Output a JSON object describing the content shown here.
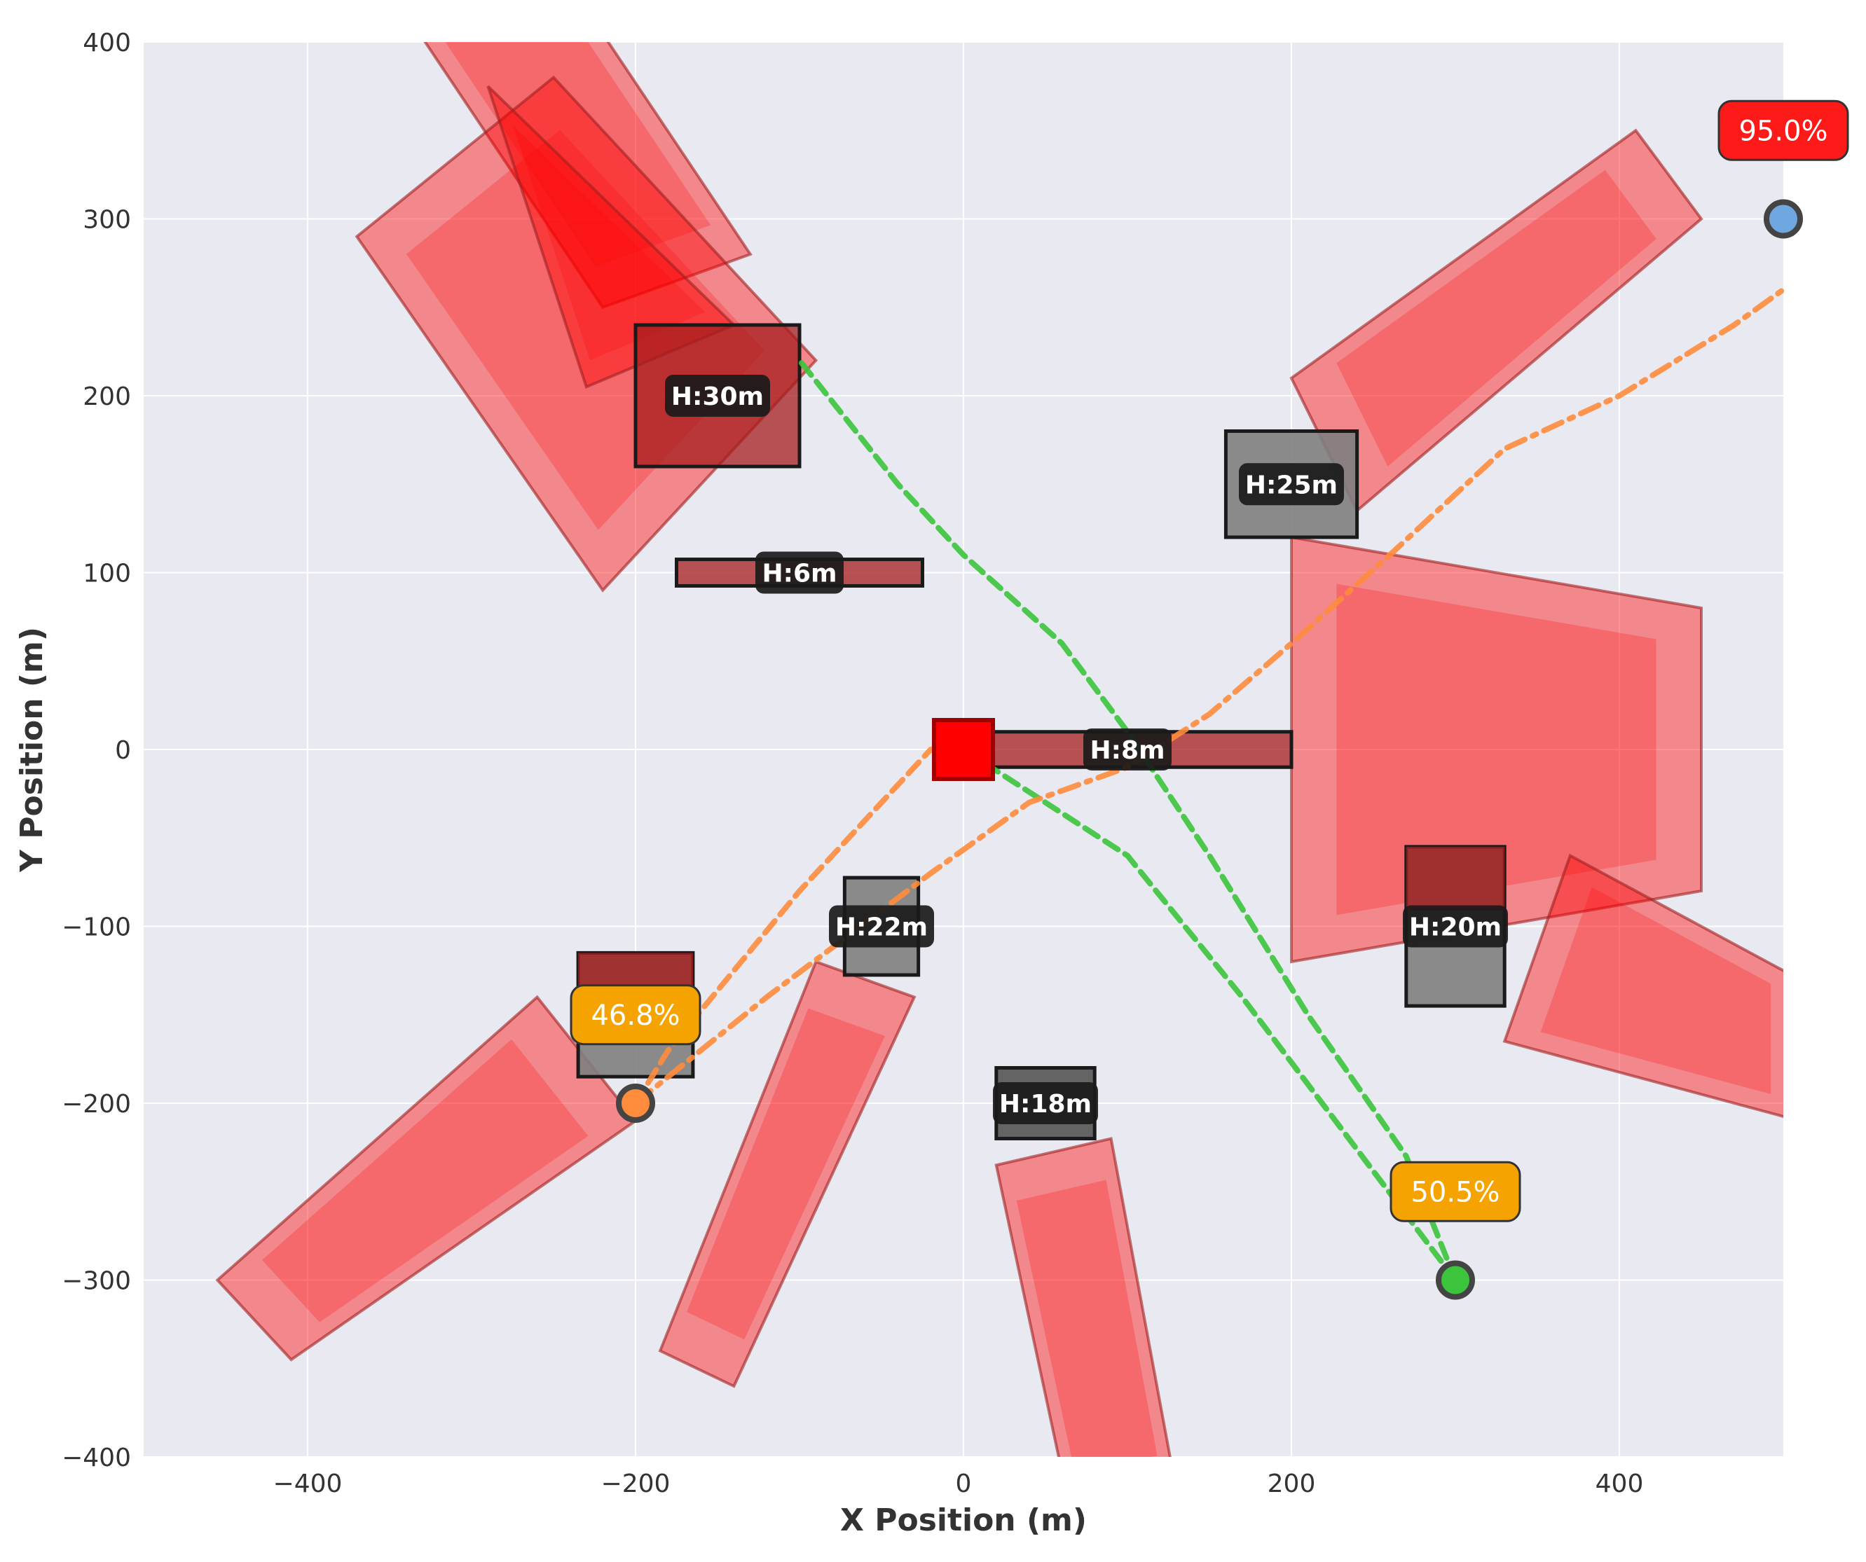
{
  "chart_data": {
    "type": "scatter",
    "title": "",
    "xlabel": "X Position (m)",
    "ylabel": "Y Position (m)",
    "xlim": [
      -500,
      500
    ],
    "ylim": [
      -400,
      400
    ],
    "xticks": [
      -400,
      -200,
      0,
      200,
      400
    ],
    "yticks": [
      -400,
      -300,
      -200,
      -100,
      0,
      100,
      200,
      300,
      400
    ],
    "grid": true,
    "background": "#e9e9f1",
    "colors": {
      "danger_zone": "#ff0000",
      "building": "#808080",
      "building_dark": "#a51c1c",
      "label_box": "#1a1a1a",
      "target": "#ff0000",
      "green_path": "#3cc43c",
      "orange_path": "#ff8c3c",
      "pct_high": "#ff1a1a",
      "pct_mid": "#f5a300",
      "blue_marker": "#6fa8e0"
    },
    "danger_zones": [
      {
        "polygon": [
          [
            -350,
            430
          ],
          [
            -260,
            460
          ],
          [
            -130,
            280
          ],
          [
            -220,
            250
          ]
        ]
      },
      {
        "polygon": [
          [
            -370,
            290
          ],
          [
            -250,
            380
          ],
          [
            -90,
            220
          ],
          [
            -220,
            90
          ]
        ]
      },
      {
        "polygon": [
          [
            -290,
            375
          ],
          [
            -140,
            240
          ],
          [
            -230,
            205
          ]
        ]
      },
      {
        "polygon": [
          [
            200,
            210
          ],
          [
            410,
            350
          ],
          [
            450,
            300
          ],
          [
            240,
            135
          ]
        ]
      },
      {
        "polygon": [
          [
            200,
            120
          ],
          [
            450,
            80
          ],
          [
            450,
            -80
          ],
          [
            200,
            -120
          ]
        ]
      },
      {
        "polygon": [
          [
            370,
            -60
          ],
          [
            510,
            -130
          ],
          [
            510,
            -210
          ],
          [
            330,
            -165
          ]
        ]
      },
      {
        "polygon": [
          [
            -200,
            -210
          ],
          [
            -260,
            -140
          ],
          [
            -455,
            -300
          ],
          [
            -410,
            -345
          ]
        ]
      },
      {
        "polygon": [
          [
            -90,
            -120
          ],
          [
            -30,
            -140
          ],
          [
            -140,
            -360
          ],
          [
            -185,
            -340
          ]
        ]
      },
      {
        "polygon": [
          [
            20,
            -235
          ],
          [
            90,
            -220
          ],
          [
            130,
            -420
          ],
          [
            65,
            -430
          ]
        ]
      }
    ],
    "buildings": [
      {
        "label": "H:30m",
        "center": [
          -150,
          200
        ],
        "size": [
          100,
          80
        ],
        "height": 30,
        "style": "red"
      },
      {
        "label": "H:25m",
        "center": [
          200,
          150
        ],
        "size": [
          80,
          60
        ],
        "height": 25,
        "style": "gray"
      },
      {
        "label": "H:6m",
        "center": [
          -100,
          100
        ],
        "size": [
          150,
          15
        ],
        "height": 6,
        "style": "red"
      },
      {
        "label": "H:8m",
        "center": [
          100,
          0
        ],
        "size": [
          200,
          20
        ],
        "height": 8,
        "style": "red"
      },
      {
        "label": "H:22m",
        "center": [
          -50,
          -100
        ],
        "size": [
          45,
          55
        ],
        "height": 22,
        "style": "gray"
      },
      {
        "label": "H:20m",
        "center": [
          300,
          -100
        ],
        "size": [
          60,
          90
        ],
        "height": 20,
        "style": "split"
      },
      {
        "label": "H:18m",
        "center": [
          50,
          -200
        ],
        "size": [
          60,
          40
        ],
        "height": 18,
        "style": "dark"
      },
      {
        "label": "",
        "center": [
          -200,
          -150
        ],
        "size": [
          70,
          70
        ],
        "height": 0,
        "style": "split"
      }
    ],
    "target": {
      "x": 0,
      "y": 0
    },
    "series": [
      {
        "kind": "dashed",
        "color": "#3cc43c",
        "points": [
          [
            300,
            -300
          ],
          [
            170,
            -140
          ],
          [
            100,
            -60
          ],
          [
            0,
            0
          ]
        ]
      },
      {
        "kind": "dashed",
        "color": "#3cc43c",
        "points": [
          [
            300,
            -300
          ],
          [
            270,
            -230
          ],
          [
            210,
            -150
          ],
          [
            150,
            -60
          ],
          [
            100,
            10
          ],
          [
            60,
            60
          ],
          [
            0,
            110
          ],
          [
            -40,
            150
          ],
          [
            -100,
            220
          ]
        ]
      },
      {
        "kind": "dashed",
        "color": "#ff8c3c",
        "points": [
          [
            -200,
            -200
          ],
          [
            -180,
            -170
          ],
          [
            -100,
            -80
          ],
          [
            -20,
            0
          ]
        ]
      },
      {
        "kind": "dashdot",
        "color": "#ff8c3c",
        "points": [
          [
            -200,
            -200
          ],
          [
            -120,
            -140
          ],
          [
            -20,
            -70
          ],
          [
            40,
            -30
          ],
          [
            100,
            -10
          ],
          [
            150,
            20
          ],
          [
            200,
            60
          ],
          [
            260,
            110
          ],
          [
            330,
            170
          ],
          [
            400,
            200
          ],
          [
            470,
            240
          ],
          [
            500,
            260
          ]
        ]
      }
    ],
    "markers": [
      {
        "x": -200,
        "y": -200,
        "color": "#ff8c3c"
      },
      {
        "x": 300,
        "y": -300,
        "color": "#3cc43c"
      },
      {
        "x": 500,
        "y": 300,
        "color": "#6fa8e0"
      }
    ],
    "percent_labels": [
      {
        "text": "46.8%",
        "x": -200,
        "y": -150,
        "color": "#f5a300"
      },
      {
        "text": "50.5%",
        "x": 300,
        "y": -250,
        "color": "#f5a300"
      },
      {
        "text": "95.0%",
        "x": 500,
        "y": 350,
        "color": "#ff1a1a"
      }
    ]
  }
}
